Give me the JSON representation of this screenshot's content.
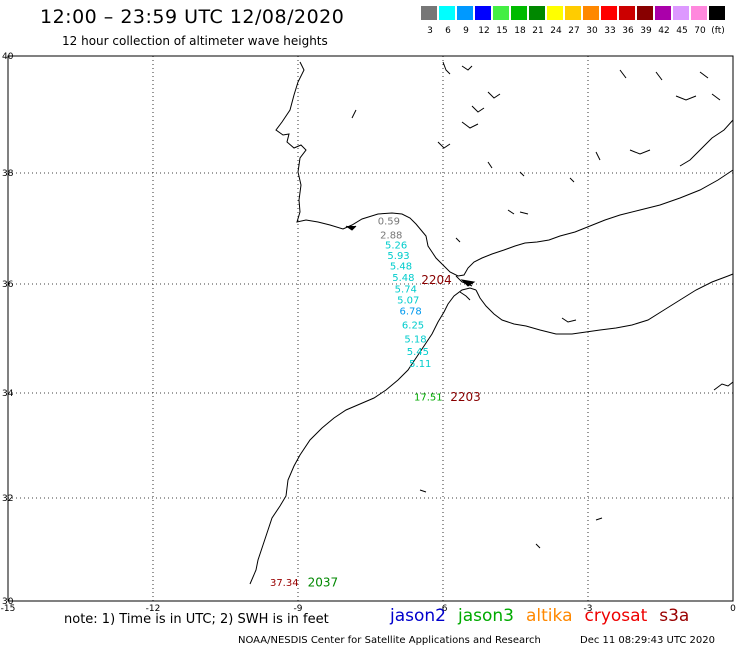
{
  "header": {
    "title": "12:00 – 23:59 UTC 12/08/2020",
    "subtitle": "12 hour collection of altimeter wave heights"
  },
  "legend": {
    "unit": "ft",
    "swatches": [
      {
        "color": "#777777",
        "label": "3"
      },
      {
        "color": "#00ffff",
        "label": "6"
      },
      {
        "color": "#0099ff",
        "label": "9"
      },
      {
        "color": "#0000ff",
        "label": "12"
      },
      {
        "color": "#44ee44",
        "label": "15"
      },
      {
        "color": "#00bb00",
        "label": "18"
      },
      {
        "color": "#008800",
        "label": "21"
      },
      {
        "color": "#ffff00",
        "label": "24"
      },
      {
        "color": "#ffcc00",
        "label": "27"
      },
      {
        "color": "#ff8800",
        "label": "30"
      },
      {
        "color": "#ff0000",
        "label": "33"
      },
      {
        "color": "#cc0000",
        "label": "36"
      },
      {
        "color": "#880000",
        "label": "39"
      },
      {
        "color": "#aa00aa",
        "label": "42"
      },
      {
        "color": "#dd99ff",
        "label": "45"
      },
      {
        "color": "#ff88dd",
        "label": "70"
      },
      {
        "color": "#000000",
        "label": "(ft)"
      }
    ]
  },
  "axes": {
    "lon_ticks": [
      "-15",
      "-12",
      "-9",
      "-6",
      "-3",
      "0"
    ],
    "lat_ticks": [
      "40",
      "38",
      "36",
      "34",
      "32",
      "30"
    ]
  },
  "wave_heights": [
    {
      "value": "0.59",
      "lon": -7.35,
      "lat": 37.07,
      "color": "#777777"
    },
    {
      "value": "2.88",
      "lon": -7.3,
      "lat": 36.82,
      "color": "#777777"
    },
    {
      "value": "5.26",
      "lon": -7.2,
      "lat": 36.64,
      "color": "#00cccc"
    },
    {
      "value": "5.93",
      "lon": -7.15,
      "lat": 36.45,
      "color": "#00cccc"
    },
    {
      "value": "5.48",
      "lon": -7.1,
      "lat": 36.26,
      "color": "#00cccc"
    },
    {
      "value": "5.48",
      "lon": -7.05,
      "lat": 36.05,
      "color": "#00cccc"
    },
    {
      "value": "5.74",
      "lon": -7.0,
      "lat": 35.84,
      "color": "#00cccc"
    },
    {
      "value": "5.07",
      "lon": -6.95,
      "lat": 35.64,
      "color": "#00cccc"
    },
    {
      "value": "6.78",
      "lon": -6.9,
      "lat": 35.44,
      "color": "#0099ee"
    },
    {
      "value": "6.25",
      "lon": -6.85,
      "lat": 35.18,
      "color": "#00cccc"
    },
    {
      "value": "5.18",
      "lon": -6.8,
      "lat": 34.93,
      "color": "#00cccc"
    },
    {
      "value": "5.45",
      "lon": -6.75,
      "lat": 34.7,
      "color": "#00cccc"
    },
    {
      "value": "5.11",
      "lon": -6.7,
      "lat": 34.48,
      "color": "#00cccc"
    },
    {
      "value": "17.51",
      "lon": -6.6,
      "lat": 33.86,
      "color": "#00aa00"
    },
    {
      "value": "37.34",
      "lon": -9.58,
      "lat": 30.29,
      "color": "#990000"
    }
  ],
  "pass_times": [
    {
      "value": "2204",
      "lon": -6.45,
      "lat": 36.0,
      "color": "#880000"
    },
    {
      "value": "2203",
      "lon": -5.85,
      "lat": 33.85,
      "color": "#880000"
    },
    {
      "value": "2037",
      "lon": -8.8,
      "lat": 30.28,
      "color": "#008800"
    }
  ],
  "footer": {
    "note": "note: 1) Time is in UTC; 2) SWH is in feet",
    "satellites": [
      {
        "name": "jason2",
        "color": "#0000cc"
      },
      {
        "name": "jason3",
        "color": "#00aa00"
      },
      {
        "name": "altika",
        "color": "#ff8800"
      },
      {
        "name": "cryosat",
        "color": "#ee0000"
      },
      {
        "name": "s3a",
        "color": "#990000"
      }
    ],
    "credit": "NOAA/NESDIS Center for Satellite Applications and Research",
    "timestamp": "Dec 11 08:29:43 UTC 2020"
  }
}
